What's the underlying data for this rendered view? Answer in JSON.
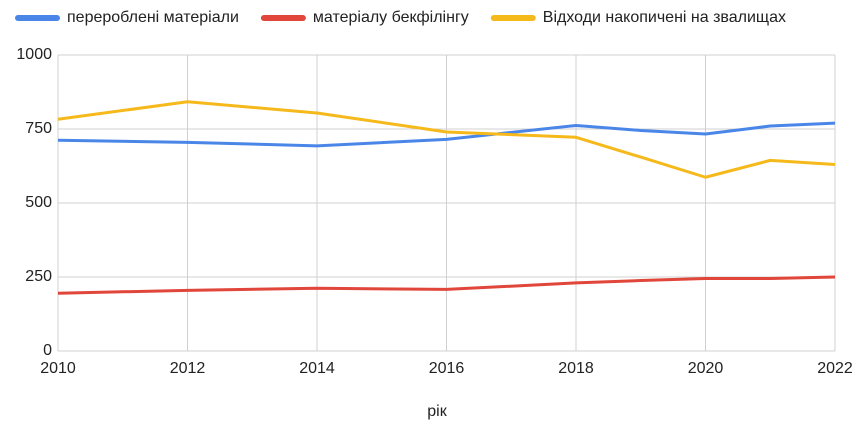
{
  "chart_data": {
    "type": "line",
    "x": [
      2010,
      2012,
      2014,
      2016,
      2018,
      2019,
      2020,
      2021,
      2022
    ],
    "series": [
      {
        "name": "перероблені матеріали",
        "color": "#4a86e8",
        "values": [
          712,
          705,
          693,
          715,
          762,
          745,
          733,
          760,
          770
        ]
      },
      {
        "name": "матеріалу бекфілінгу",
        "color": "#e0463a",
        "values": [
          195,
          205,
          212,
          208,
          230,
          238,
          245,
          245,
          250
        ]
      },
      {
        "name": "Відходи накопичені на звалищах",
        "color": "#f6b91c",
        "values": [
          783,
          842,
          804,
          740,
          722,
          655,
          587,
          644,
          630
        ]
      }
    ],
    "x_label": "рік",
    "xlim": [
      2010,
      2022
    ],
    "xticks": [
      2010,
      2012,
      2014,
      2016,
      2018,
      2020,
      2022
    ],
    "ylim": [
      0,
      1000
    ],
    "yticks": [
      0,
      250,
      500,
      750,
      1000
    ],
    "grid": true,
    "legend": "top"
  }
}
